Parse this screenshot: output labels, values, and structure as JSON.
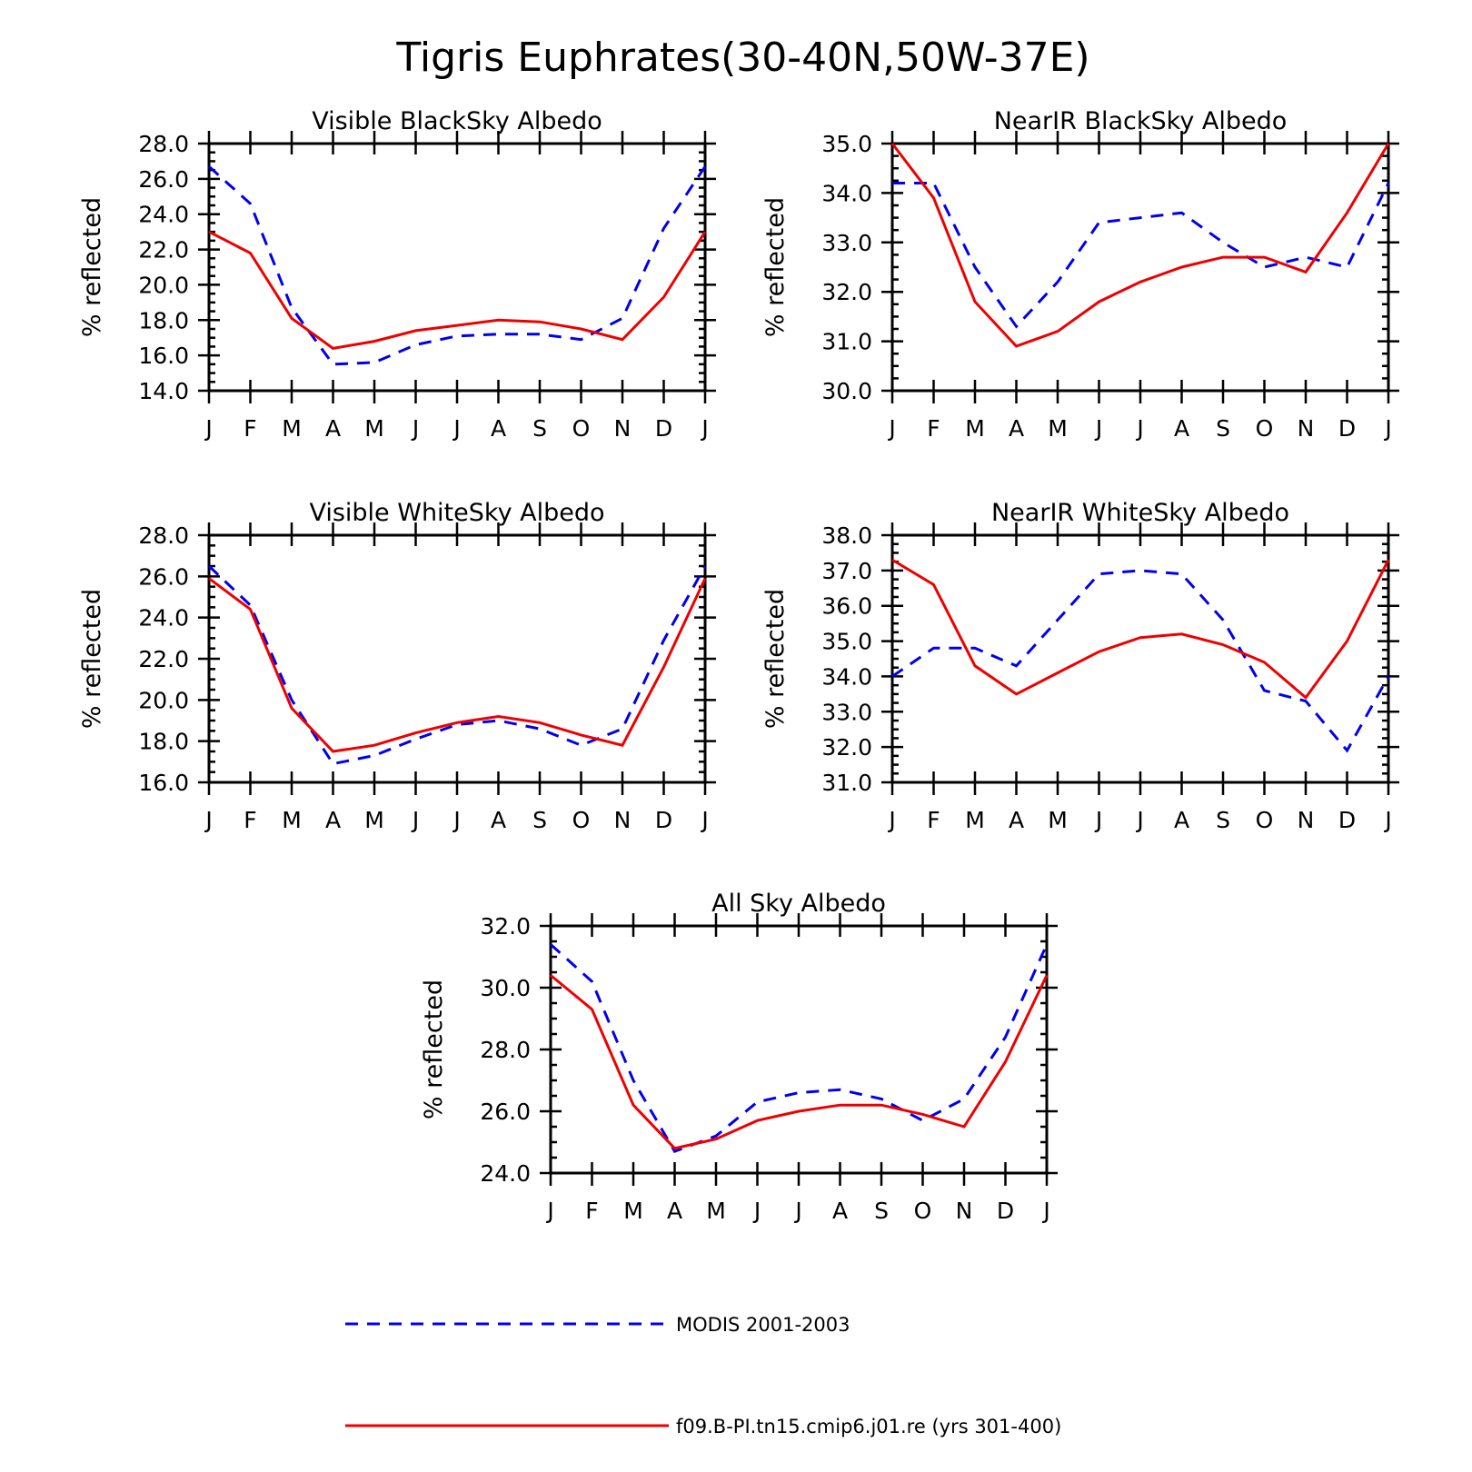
{
  "title": "Tigris Euphrates(30-40N,50W-37E)",
  "legend": {
    "modis_label": "MODIS 2001-2003",
    "model_label": "f09.B-PI.tn15.cmip6.j01.re (yrs 301-400)"
  },
  "colors": {
    "modis": "#0000ee",
    "model": "#ee0000"
  },
  "chart_data": [
    {
      "type": "line",
      "title": "Visible BlackSky Albedo",
      "ylabel": "% reflected",
      "xlabel": "",
      "categories": [
        "J",
        "F",
        "M",
        "A",
        "M",
        "J",
        "J",
        "A",
        "S",
        "O",
        "N",
        "D",
        "J"
      ],
      "ylim": [
        14,
        28
      ],
      "yticks": [
        "14.0",
        "16.0",
        "18.0",
        "20.0",
        "22.0",
        "24.0",
        "26.0",
        "28.0"
      ],
      "series": [
        {
          "key": "modis",
          "style": "dashed",
          "values": [
            26.7,
            24.6,
            18.7,
            15.5,
            15.6,
            16.6,
            17.1,
            17.2,
            17.2,
            16.9,
            18.1,
            23.2,
            26.7
          ]
        },
        {
          "key": "model",
          "style": "solid",
          "values": [
            23.0,
            21.8,
            18.1,
            16.4,
            16.8,
            17.4,
            17.7,
            18.0,
            17.9,
            17.5,
            16.9,
            19.3,
            23.0
          ]
        }
      ]
    },
    {
      "type": "line",
      "title": "NearIR BlackSky Albedo",
      "ylabel": "% reflected",
      "xlabel": "",
      "categories": [
        "J",
        "F",
        "M",
        "A",
        "M",
        "J",
        "J",
        "A",
        "S",
        "O",
        "N",
        "D",
        "J"
      ],
      "ylim": [
        30,
        35
      ],
      "yticks": [
        "30.0",
        "31.0",
        "32.0",
        "33.0",
        "34.0",
        "35.0"
      ],
      "series": [
        {
          "key": "modis",
          "style": "dashed",
          "values": [
            34.2,
            34.2,
            32.5,
            31.3,
            32.2,
            33.4,
            33.5,
            33.6,
            33.0,
            32.5,
            32.7,
            32.5,
            34.2
          ]
        },
        {
          "key": "model",
          "style": "solid",
          "values": [
            35.0,
            33.9,
            31.8,
            30.9,
            31.2,
            31.8,
            32.2,
            32.5,
            32.7,
            32.7,
            32.4,
            33.6,
            35.0
          ]
        }
      ]
    },
    {
      "type": "line",
      "title": "Visible WhiteSky Albedo",
      "ylabel": "% reflected",
      "xlabel": "",
      "categories": [
        "J",
        "F",
        "M",
        "A",
        "M",
        "J",
        "J",
        "A",
        "S",
        "O",
        "N",
        "D",
        "J"
      ],
      "ylim": [
        16,
        28
      ],
      "yticks": [
        "16.0",
        "18.0",
        "20.0",
        "22.0",
        "24.0",
        "26.0",
        "28.0"
      ],
      "series": [
        {
          "key": "modis",
          "style": "dashed",
          "values": [
            26.5,
            24.6,
            20.0,
            16.9,
            17.3,
            18.1,
            18.8,
            19.0,
            18.6,
            17.8,
            18.6,
            22.9,
            26.5
          ]
        },
        {
          "key": "model",
          "style": "solid",
          "values": [
            25.9,
            24.4,
            19.6,
            17.5,
            17.8,
            18.4,
            18.9,
            19.2,
            18.9,
            18.3,
            17.8,
            21.6,
            25.9
          ]
        }
      ]
    },
    {
      "type": "line",
      "title": "NearIR WhiteSky Albedo",
      "ylabel": "% reflected",
      "xlabel": "",
      "categories": [
        "J",
        "F",
        "M",
        "A",
        "M",
        "J",
        "J",
        "A",
        "S",
        "O",
        "N",
        "D",
        "J"
      ],
      "ylim": [
        31,
        38
      ],
      "yticks": [
        "31.0",
        "32.0",
        "33.0",
        "34.0",
        "35.0",
        "36.0",
        "37.0",
        "38.0"
      ],
      "series": [
        {
          "key": "modis",
          "style": "dashed",
          "values": [
            34.0,
            34.8,
            34.8,
            34.3,
            35.6,
            36.9,
            37.0,
            36.9,
            35.6,
            33.6,
            33.3,
            31.9,
            34.0
          ]
        },
        {
          "key": "model",
          "style": "solid",
          "values": [
            37.3,
            36.6,
            34.3,
            33.5,
            34.1,
            34.7,
            35.1,
            35.2,
            34.9,
            34.4,
            33.4,
            35.0,
            37.3
          ]
        }
      ]
    },
    {
      "type": "line",
      "title": "All Sky Albedo",
      "ylabel": "% reflected",
      "xlabel": "",
      "categories": [
        "J",
        "F",
        "M",
        "A",
        "M",
        "J",
        "J",
        "A",
        "S",
        "O",
        "N",
        "D",
        "J"
      ],
      "ylim": [
        24,
        32
      ],
      "yticks": [
        "24.0",
        "26.0",
        "28.0",
        "30.0",
        "32.0"
      ],
      "series": [
        {
          "key": "modis",
          "style": "dashed",
          "values": [
            31.4,
            30.2,
            27.0,
            24.7,
            25.2,
            26.3,
            26.6,
            26.7,
            26.4,
            25.7,
            26.4,
            28.4,
            31.4
          ]
        },
        {
          "key": "model",
          "style": "solid",
          "values": [
            30.4,
            29.3,
            26.2,
            24.8,
            25.1,
            25.7,
            26.0,
            26.2,
            26.2,
            25.9,
            25.5,
            27.6,
            30.4
          ]
        }
      ]
    }
  ]
}
